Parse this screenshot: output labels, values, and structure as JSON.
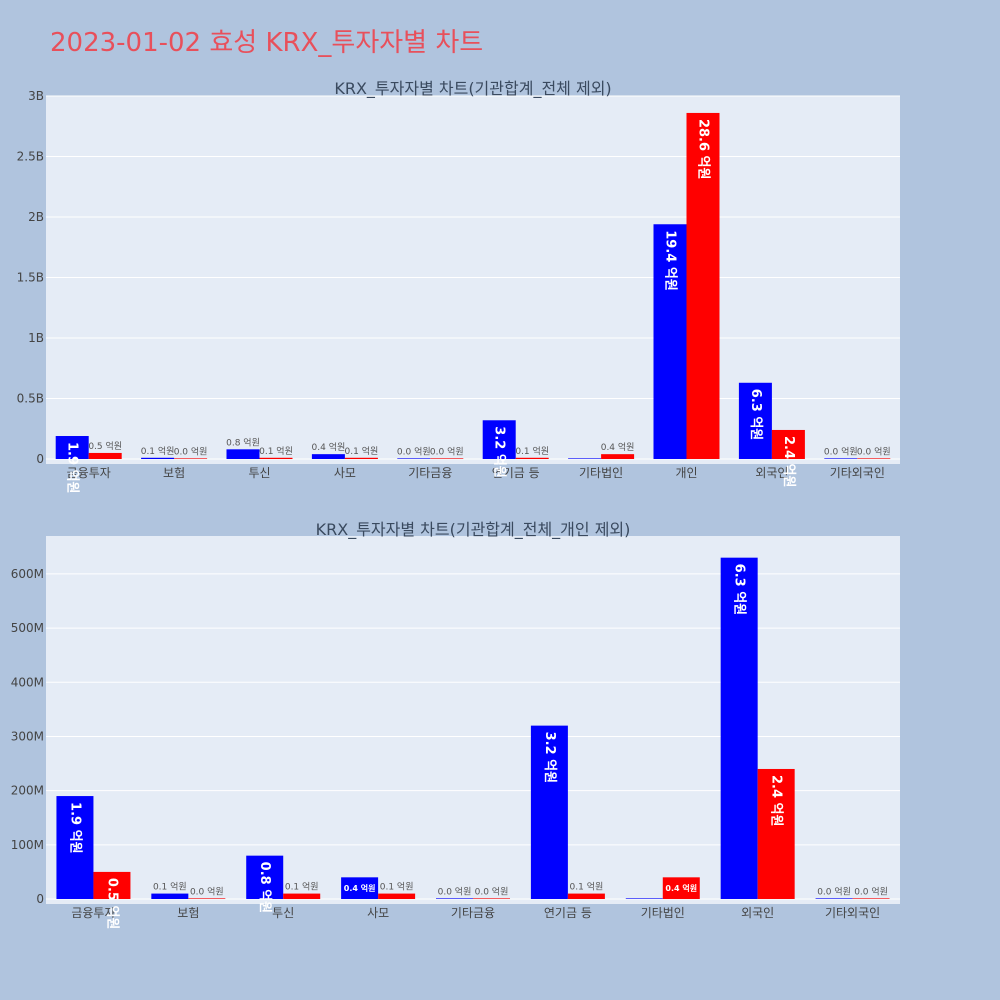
{
  "page_title": "2023-01-02 효성 KRX_투자자별 차트",
  "chart_data": [
    {
      "type": "bar",
      "title": "KRX_투자자별 차트(기관합계_전체 제외)",
      "categories": [
        "금융투자",
        "보험",
        "투신",
        "사모",
        "기타금융",
        "연기금 등",
        "기타법인",
        "개인",
        "외국인",
        "기타외국인"
      ],
      "y_tick_labels": [
        "0",
        "0.5B",
        "1B",
        "1.5B",
        "2B",
        "2.5B",
        "3B"
      ],
      "ylim": [
        0,
        3000000000
      ],
      "grid": true,
      "series": [
        {
          "color": "#0000ff",
          "values": [
            190000000,
            10000000,
            80000000,
            40000000,
            0,
            320000000,
            0,
            1940000000,
            630000000,
            0
          ],
          "labels": [
            "1.9 억원",
            "0.1 억원",
            "0.8 억원",
            "0.4 억원",
            "0.0 억원",
            "3.2 억원",
            "",
            "19.4 억원",
            "6.3 억원",
            "0.0 억원"
          ]
        },
        {
          "color": "#ff0000",
          "values": [
            50000000,
            0,
            10000000,
            10000000,
            0,
            10000000,
            40000000,
            2860000000,
            240000000,
            0
          ],
          "labels": [
            "0.5 억원",
            "0.0 억원",
            "0.1 억원",
            "0.1 억원",
            "0.0 억원",
            "0.1 억원",
            "0.4 억원",
            "28.6 억원",
            "2.4 억원",
            "0.0 억원"
          ]
        }
      ]
    },
    {
      "type": "bar",
      "title": "KRX_투자자별 차트(기관합계_전체_개인 제외)",
      "categories": [
        "금융투자",
        "보험",
        "투신",
        "사모",
        "기타금융",
        "연기금 등",
        "기타법인",
        "외국인",
        "기타외국인"
      ],
      "y_tick_labels": [
        "0",
        "100M",
        "200M",
        "300M",
        "400M",
        "500M",
        "600M"
      ],
      "ylim": [
        0,
        670000000
      ],
      "grid": true,
      "series": [
        {
          "color": "#0000ff",
          "values": [
            190000000,
            10000000,
            80000000,
            40000000,
            0,
            320000000,
            0,
            630000000,
            0
          ],
          "labels": [
            "1.9 억원",
            "0.1 억원",
            "0.8 억원",
            "0.4 억원",
            "0.0 억원",
            "3.2 억원",
            "",
            "6.3 억원",
            "0.0 억원"
          ]
        },
        {
          "color": "#ff0000",
          "values": [
            50000000,
            0,
            10000000,
            10000000,
            0,
            10000000,
            40000000,
            240000000,
            0
          ],
          "labels": [
            "0.5 억원",
            "0.0 억원",
            "0.1 억원",
            "0.1 억원",
            "0.0 억원",
            "0.1 억원",
            "0.4 억원",
            "2.4 억원",
            "0.0 억원"
          ]
        }
      ]
    }
  ]
}
